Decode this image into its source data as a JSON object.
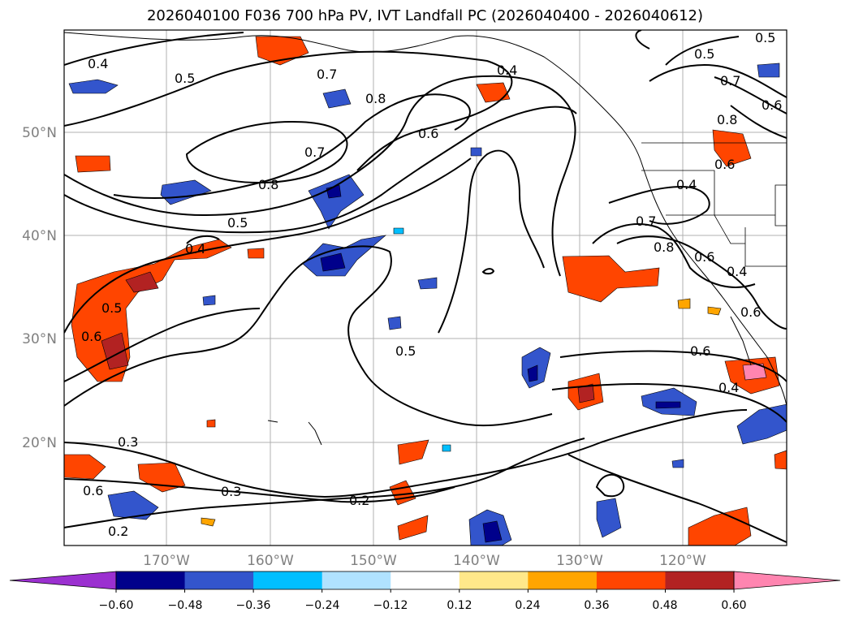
{
  "title": "2026040100 F036 700 hPa PV, IVT Landfall PC (2026040400 - 2026040612)",
  "map": {
    "lat_labels": [
      "50°N",
      "40°N",
      "30°N",
      "20°N"
    ],
    "lon_labels": [
      "170°W",
      "160°W",
      "150°W",
      "140°W",
      "130°W",
      "120°W"
    ],
    "contour_labels": [
      "0.4",
      "0.5",
      "0.7",
      "0.8",
      "0.4",
      "0.6",
      "0.5",
      "0.7",
      "0.8",
      "0.5",
      "0.4",
      "0.6",
      "0.5",
      "0.6",
      "0.5",
      "0.3",
      "0.3",
      "0.2",
      "0.2",
      "0.4",
      "0.7",
      "0.8",
      "0.6",
      "0.4",
      "0.6",
      "0.4",
      "0.6",
      "0.5",
      "0.7",
      "0.6",
      "0.8",
      "0.6"
    ]
  },
  "colorbar": {
    "ticks": [
      "−0.60",
      "−0.48",
      "−0.36",
      "−0.24",
      "−0.12",
      "0.12",
      "0.24",
      "0.36",
      "0.48",
      "0.60"
    ],
    "colors": [
      "#9b30d0",
      "#00008b",
      "#3355cc",
      "#00bfff",
      "#b0e2ff",
      "#ffffff",
      "#ffe88a",
      "#ffa500",
      "#ff4500",
      "#b22222",
      "#ff85b0"
    ]
  }
}
